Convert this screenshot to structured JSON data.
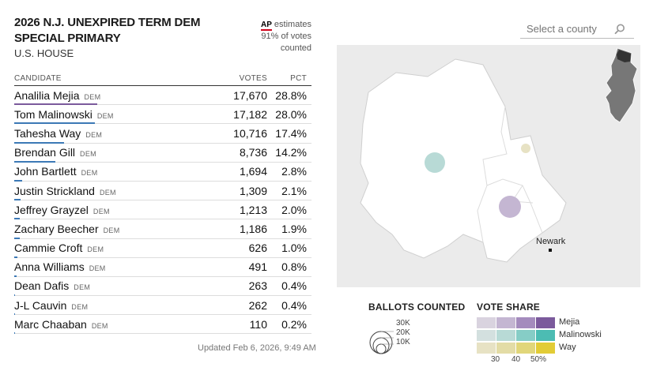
{
  "header": {
    "title": "2026 N.J. UNEXPIRED TERM DEM SPECIAL PRIMARY",
    "subtitle": "U.S. HOUSE"
  },
  "ap": {
    "logo": "AP",
    "line1": "estimates",
    "line2": "91% of votes",
    "line3": "counted"
  },
  "table": {
    "headers": {
      "candidate": "CANDIDATE",
      "votes": "VOTES",
      "pct": "PCT"
    },
    "rows": [
      {
        "name": "Analilia Mejia",
        "party": "DEM",
        "votes": "17,670",
        "pct": "28.8%",
        "share": 28.8,
        "bar_color": "#7b5a9c"
      },
      {
        "name": "Tom Malinowski",
        "party": "DEM",
        "votes": "17,182",
        "pct": "28.0%",
        "share": 28.0,
        "bar_color": "#3c79b6"
      },
      {
        "name": "Tahesha Way",
        "party": "DEM",
        "votes": "10,716",
        "pct": "17.4%",
        "share": 17.4,
        "bar_color": "#3c79b6"
      },
      {
        "name": "Brendan Gill",
        "party": "DEM",
        "votes": "8,736",
        "pct": "14.2%",
        "share": 14.2,
        "bar_color": "#3c79b6"
      },
      {
        "name": "John Bartlett",
        "party": "DEM",
        "votes": "1,694",
        "pct": "2.8%",
        "share": 2.8,
        "bar_color": "#3c79b6"
      },
      {
        "name": "Justin Strickland",
        "party": "DEM",
        "votes": "1,309",
        "pct": "2.1%",
        "share": 2.1,
        "bar_color": "#3c79b6"
      },
      {
        "name": "Jeffrey Grayzel",
        "party": "DEM",
        "votes": "1,213",
        "pct": "2.0%",
        "share": 2.0,
        "bar_color": "#3c79b6"
      },
      {
        "name": "Zachary Beecher",
        "party": "DEM",
        "votes": "1,186",
        "pct": "1.9%",
        "share": 1.9,
        "bar_color": "#3c79b6"
      },
      {
        "name": "Cammie Croft",
        "party": "DEM",
        "votes": "626",
        "pct": "1.0%",
        "share": 1.0,
        "bar_color": "#3c79b6"
      },
      {
        "name": "Anna Williams",
        "party": "DEM",
        "votes": "491",
        "pct": "0.8%",
        "share": 0.8,
        "bar_color": "#3c79b6"
      },
      {
        "name": "Dean Dafis",
        "party": "DEM",
        "votes": "263",
        "pct": "0.4%",
        "share": 0.4,
        "bar_color": "#3c79b6"
      },
      {
        "name": "J-L Cauvin",
        "party": "DEM",
        "votes": "262",
        "pct": "0.4%",
        "share": 0.4,
        "bar_color": "#3c79b6"
      },
      {
        "name": "Marc Chaaban",
        "party": "DEM",
        "votes": "110",
        "pct": "0.2%",
        "share": 0.2,
        "bar_color": "#3c79b6"
      }
    ]
  },
  "updated": "Updated Feb 6, 2026, 9:49 AM",
  "search": {
    "placeholder": "Select a county"
  },
  "map": {
    "city_label": "Newark",
    "colors": {
      "land": "#ebebeb",
      "district": "#ffffff",
      "border": "#cfcfcf"
    }
  },
  "legend": {
    "ballots": {
      "title": "BALLOTS COUNTED",
      "labels": [
        "30K",
        "20K",
        "10K"
      ]
    },
    "share": {
      "title": "VOTE SHARE",
      "candidates": [
        "Mejia",
        "Malinowski",
        "Way"
      ],
      "pct_labels": [
        "30",
        "40",
        "50%"
      ],
      "colors": [
        [
          "#d9d3df",
          "#c4b6d2",
          "#a48bbd",
          "#7b5a9c"
        ],
        [
          "#d3e0df",
          "#b8dad6",
          "#86cdc6",
          "#4cbcb3"
        ],
        [
          "#e7e2c4",
          "#e3dca6",
          "#e1d67a",
          "#e2cc36"
        ]
      ]
    }
  }
}
